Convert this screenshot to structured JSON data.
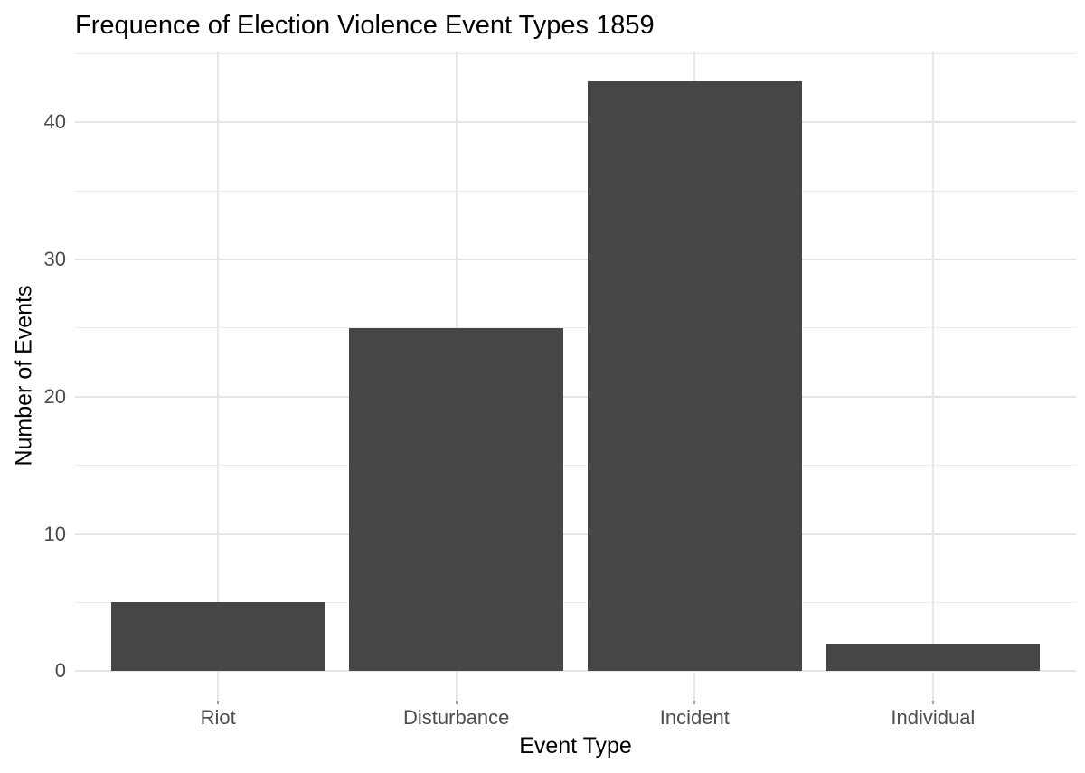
{
  "chart_data": {
    "type": "bar",
    "title": "Frequence of Election Violence Event Types 1859",
    "xlabel": "Event Type",
    "ylabel": "Number of Events",
    "categories": [
      "Riot",
      "Disturbance",
      "Incident",
      "Individual"
    ],
    "values": [
      5,
      25,
      43,
      2
    ],
    "yticks": [
      0,
      10,
      20,
      30,
      40
    ],
    "minor_yticks": [
      5,
      15,
      25,
      35,
      45
    ],
    "ylim": [
      0,
      43
    ],
    "bar_width_ratio": 0.9,
    "grid": true,
    "legend": false,
    "colors": {
      "bar_fill": "#464646",
      "grid_major": "#e5e5e5",
      "grid_minor": "#ebebeb",
      "tick_label": "#4d4d4d",
      "axis_title": "#000000",
      "title": "#000000",
      "background": "#ffffff"
    }
  }
}
